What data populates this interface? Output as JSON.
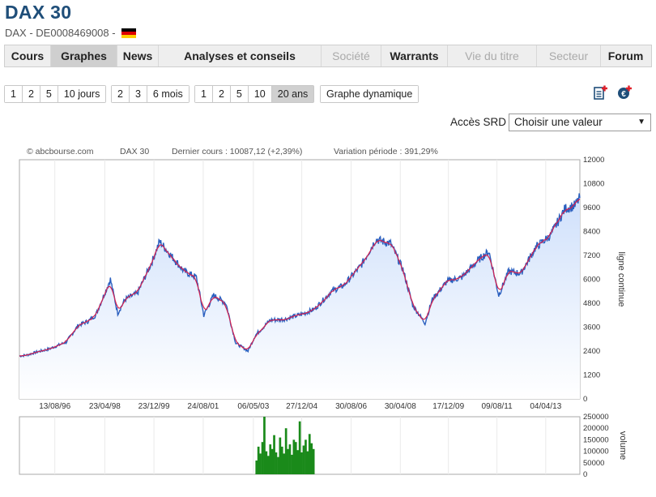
{
  "header": {
    "title": "DAX 30",
    "subtitle": "DAX - DE0008469008 -"
  },
  "nav": [
    {
      "label": "Cours",
      "state": "normal"
    },
    {
      "label": "Graphes",
      "state": "active"
    },
    {
      "label": "News",
      "state": "normal"
    },
    {
      "label": "Analyses et conseils",
      "state": "normal"
    },
    {
      "label": "Société",
      "state": "disabled"
    },
    {
      "label": "Warrants",
      "state": "normal"
    },
    {
      "label": "Vie du titre",
      "state": "disabled"
    },
    {
      "label": "Secteur",
      "state": "disabled"
    },
    {
      "label": "Forum",
      "state": "normal"
    }
  ],
  "periods": {
    "days": [
      "1",
      "2",
      "5",
      "10 jours"
    ],
    "months": [
      "2",
      "3",
      "6 mois"
    ],
    "years": [
      "1",
      "2",
      "5",
      "10",
      "20 ans"
    ],
    "active": "20 ans",
    "dynamic": "Graphe dynamique"
  },
  "icons": {
    "doc": "add-document-icon",
    "euro": "add-euro-icon"
  },
  "srd": {
    "label": "Accès SRD",
    "value": "Choisir une valeur"
  },
  "info": {
    "source": "© abcbourse.com",
    "name": "DAX 30",
    "last": "Dernier cours : 10087,12 (+2,39%)",
    "variation": "Variation période : 391,29%"
  },
  "colors": {
    "title": "#1f4e79",
    "price_line": "#2a5fbf",
    "avg_line": "#d6204f",
    "area": "#cfe0fb",
    "volume": "#1a8a1a"
  },
  "chart_data": [
    {
      "type": "line",
      "ylabel": "ligne continue",
      "ylim": [
        0,
        12000
      ],
      "yticks": [
        0,
        1200,
        2400,
        3600,
        4800,
        6000,
        7200,
        8400,
        9600,
        10800,
        12000
      ],
      "xticks": [
        "13/08/96",
        "23/04/98",
        "23/12/99",
        "24/08/01",
        "06/05/03",
        "27/12/04",
        "30/08/06",
        "30/04/08",
        "17/12/09",
        "09/08/11",
        "04/04/13"
      ],
      "x_range": [
        "1995-06",
        "2014-06"
      ],
      "series": [
        {
          "x": [
            "1995-06",
            "1995-09",
            "1996-01",
            "1996-06",
            "1997-01",
            "1997-06",
            "1997-10",
            "1998-01",
            "1998-07",
            "1998-10",
            "1999-01",
            "1999-06",
            "1999-12",
            "2000-03",
            "2000-09",
            "2001-01",
            "2001-06",
            "2001-09",
            "2002-01",
            "2002-06",
            "2002-10",
            "2003-03",
            "2003-06",
            "2003-12",
            "2004-06",
            "2005-01",
            "2005-06",
            "2006-01",
            "2006-06",
            "2007-01",
            "2007-07",
            "2008-01",
            "2008-06",
            "2008-10",
            "2009-03",
            "2009-06",
            "2009-12",
            "2010-06",
            "2011-01",
            "2011-05",
            "2011-09",
            "2012-01",
            "2012-06",
            "2012-12",
            "2013-06",
            "2013-12",
            "2014-04",
            "2014-06"
          ],
          "y": [
            2150,
            2200,
            2350,
            2500,
            2850,
            3700,
            3900,
            4200,
            6000,
            4300,
            5000,
            5300,
            6900,
            7900,
            7000,
            6400,
            6100,
            4200,
            5200,
            4800,
            2800,
            2400,
            3200,
            3950,
            4000,
            4250,
            4500,
            5400,
            5700,
            6700,
            8000,
            7800,
            6500,
            4700,
            3800,
            5000,
            5900,
            6100,
            7000,
            7400,
            5200,
            6400,
            6300,
            7600,
            8200,
            9550,
            9700,
            10087
          ]
        }
      ]
    },
    {
      "type": "bar",
      "ylabel": "volume",
      "ylim": [
        0,
        250000
      ],
      "yticks": [
        0,
        50000,
        100000,
        150000,
        200000,
        250000
      ],
      "x_range": [
        "1995-06",
        "2014-06"
      ],
      "series": [
        {
          "x_start": "2003-06",
          "x_end": "2005-06",
          "values": [
            60000,
            120000,
            90000,
            140000,
            250000,
            100000,
            80000,
            130000,
            110000,
            170000,
            95000,
            75000,
            160000,
            120000,
            90000,
            200000,
            110000,
            130000,
            85000,
            150000,
            140000,
            105000,
            230000,
            95000,
            125000,
            150000,
            100000,
            175000,
            135000,
            110000
          ]
        }
      ]
    }
  ]
}
